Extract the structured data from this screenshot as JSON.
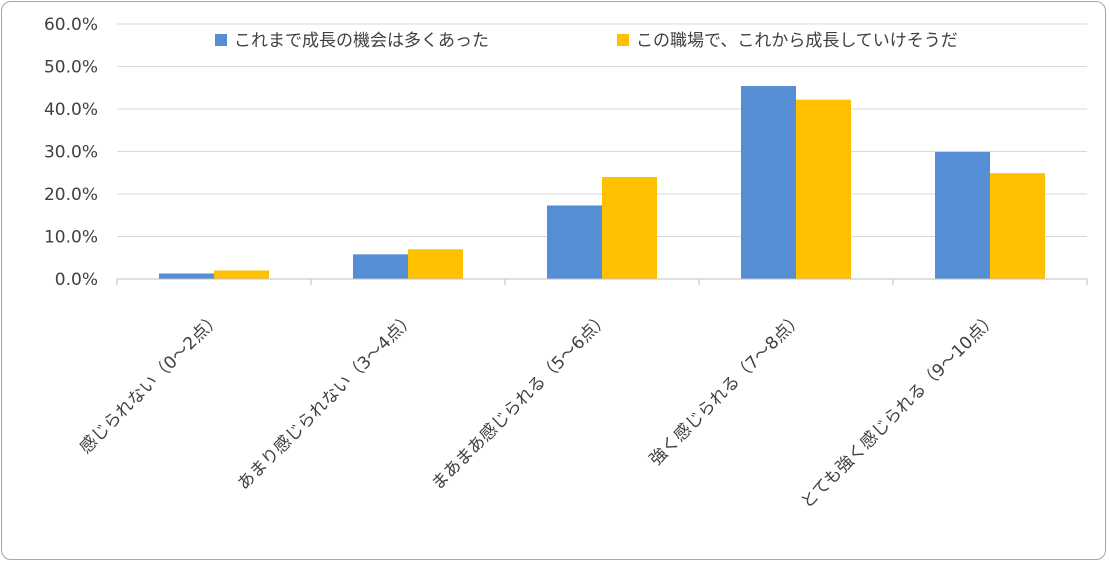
{
  "chart_data": {
    "type": "bar",
    "categories": [
      "感じられない（0〜2点）",
      "あまり感じられない（3〜4点）",
      "まあまあ感じられる（5〜6点）",
      "強く感じられる（7〜8点）",
      "とても強く感じられる（9〜10点）"
    ],
    "series": [
      {
        "name": "これまで成長の機会は多くあった",
        "color": "#558ed5",
        "values": [
          1.3,
          5.8,
          17.3,
          45.4,
          29.9
        ]
      },
      {
        "name": "この職場で、これから成長していけそうだ",
        "color": "#ffc000",
        "values": [
          2.0,
          7.0,
          24.0,
          42.2,
          24.9
        ]
      }
    ],
    "ylim": [
      0,
      60
    ],
    "yticks": [
      "0.0%",
      "10.0%",
      "20.0%",
      "30.0%",
      "40.0%",
      "50.0%",
      "60.0%"
    ],
    "grid": true,
    "legend_position": "top",
    "gridline_color": "#d9d9d9",
    "axis_color": "#bfbfbf"
  }
}
